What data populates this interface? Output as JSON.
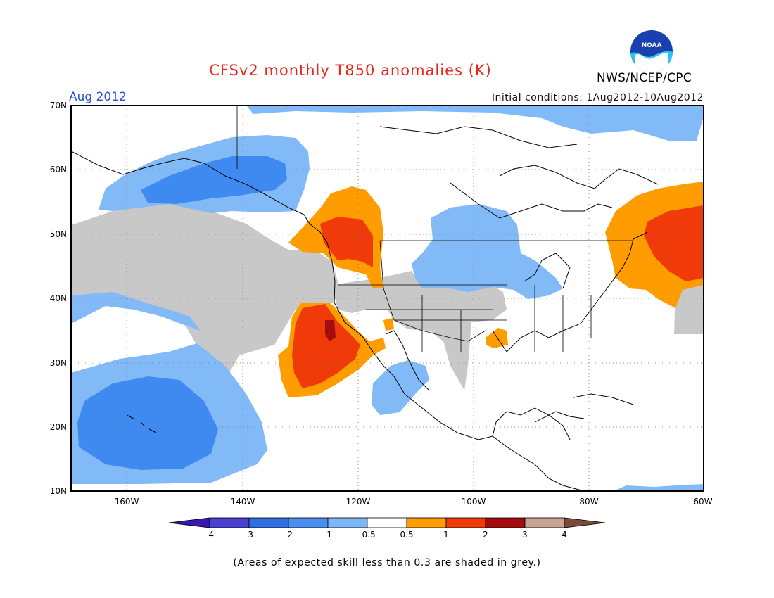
{
  "header": {
    "title": "CFSv2 monthly T850 anomalies (K)",
    "month": "Aug 2012",
    "initial_conditions": "Initial conditions: 1Aug2012-10Aug2012",
    "agency": "NWS/NCEP/CPC",
    "logo_text": "NOAA"
  },
  "map": {
    "lat_labels": [
      "70N",
      "60N",
      "50N",
      "40N",
      "30N",
      "20N",
      "10N"
    ],
    "lon_labels": [
      "160W",
      "140W",
      "120W",
      "100W",
      "80W",
      "60W"
    ],
    "extent": {
      "lon": [
        -172,
        -60
      ],
      "lat": [
        10,
        70
      ]
    }
  },
  "legend": {
    "labels": [
      "-4",
      "-3",
      "-2",
      "-1",
      "-0.5",
      "0.5",
      "1",
      "2",
      "3",
      "4"
    ],
    "colors": [
      "#3a17b5",
      "#4a41d1",
      "#2f6fe0",
      "#4a8ff0",
      "#7db6f5",
      "#ffffff",
      "#ff9c00",
      "#f03a0a",
      "#a30d0d",
      "#c8a493",
      "#7a4a3a"
    ]
  },
  "colors": {
    "grey_skill": "#c8c8c8",
    "blue_light": "#82baf7",
    "blue_mid": "#3f8af0",
    "orange": "#ff9c00",
    "red": "#f03a0a",
    "dark_red": "#a30d0d"
  },
  "footnote": "(Areas of expected skill less than 0.3 are shaded in grey.)"
}
